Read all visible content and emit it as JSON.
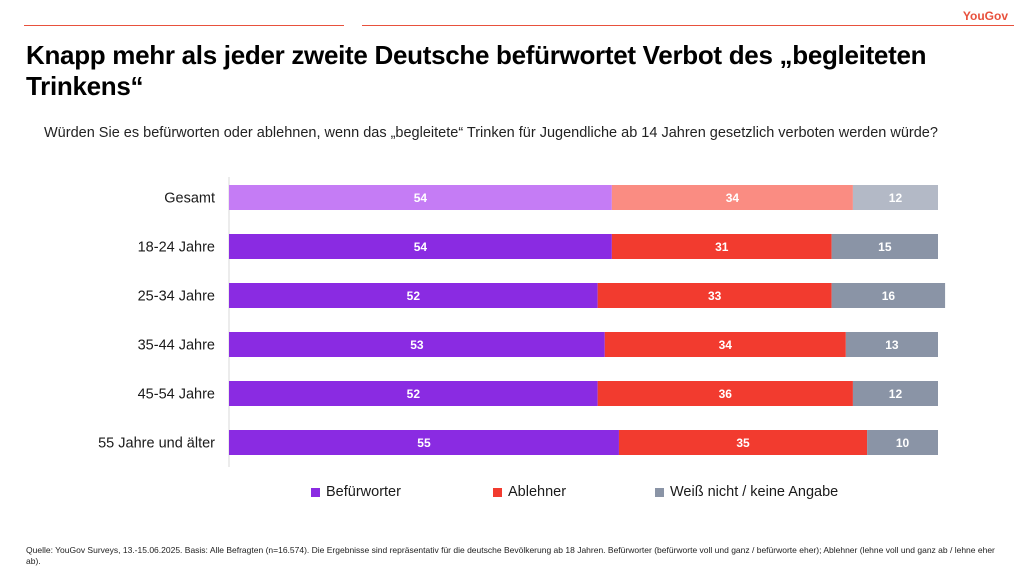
{
  "brand": "YouGov",
  "title": "Knapp mehr als jeder zweite Deutsche befürwortet Verbot des „begleiteten Trinkens“",
  "question": "Würden Sie es befürworten oder ablehnen, wenn das „begleitete“ Trinken für Jugendliche ab 14 Jahren gesetzlich verboten werden würde?",
  "source": "Quelle: YouGov Surveys, 13.-15.06.2025. Basis: Alle Befragten (n=16.574). Die Ergebnisse sind repräsentativ für die deutsche Bevölkerung ab 18 Jahren. Befürworter (befürworte voll und ganz / befürworte eher); Ablehner (lehne voll und ganz ab / lehne eher ab).",
  "colors": {
    "accent": "#e8513d",
    "befuerworter": "#8a2be2",
    "ablehner": "#f23b2f",
    "weiss_nicht": "#8a94a6",
    "befuerworter_light": "#c57cf5",
    "ablehner_light": "#fa8c82",
    "weiss_nicht_light": "#b3b9c6"
  },
  "chart_data": {
    "type": "bar",
    "orientation": "horizontal",
    "stacked": true,
    "unit": "%",
    "categories": [
      "Gesamt",
      "18-24 Jahre",
      "25-34 Jahre",
      "35-44 Jahre",
      "45-54 Jahre",
      "55 Jahre und älter"
    ],
    "series": [
      {
        "name": "Befürworter",
        "values": [
          54,
          54,
          52,
          53,
          52,
          55
        ]
      },
      {
        "name": "Ablehner",
        "values": [
          34,
          31,
          33,
          34,
          36,
          35
        ]
      },
      {
        "name": "Weiß nicht / keine Angabe",
        "values": [
          12,
          15,
          16,
          13,
          12,
          10
        ]
      }
    ],
    "xlim": [
      0,
      100
    ],
    "highlight_category": "Gesamt",
    "legend_position": "bottom"
  }
}
